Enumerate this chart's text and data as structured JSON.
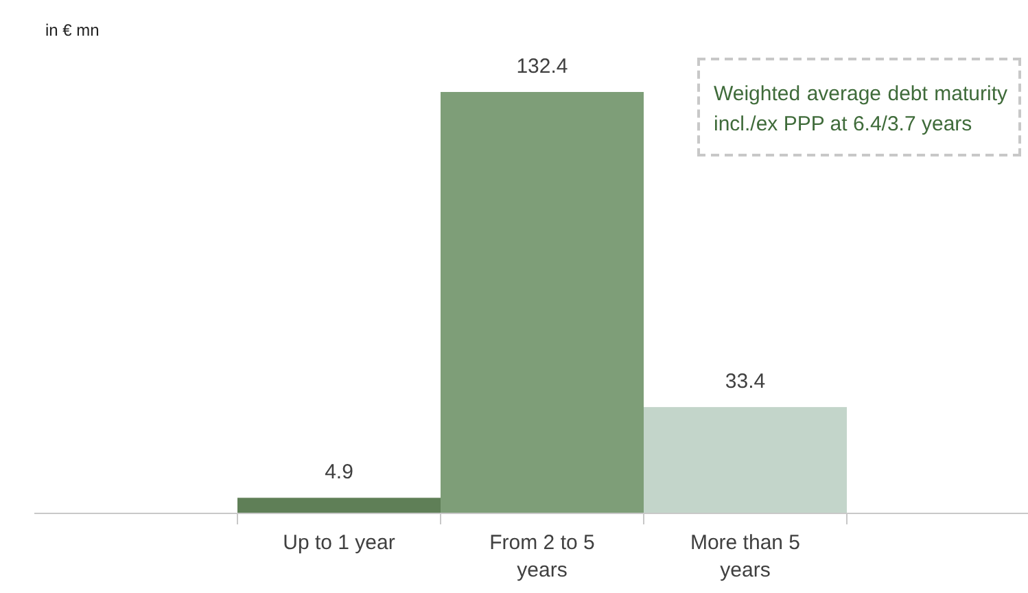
{
  "chart_data": {
    "type": "bar",
    "categories": [
      "Up to 1 year",
      "From 2 to 5 years",
      "More than 5 years"
    ],
    "values": [
      4.9,
      132.4,
      33.4
    ],
    "colors": [
      "#5f7f57",
      "#7e9e78",
      "#c3d5ca"
    ],
    "data_labels": true,
    "annotations": [
      "in € mn",
      "Weighted average debt maturity incl./ex PPP at 6.4/3.7 years"
    ]
  }
}
